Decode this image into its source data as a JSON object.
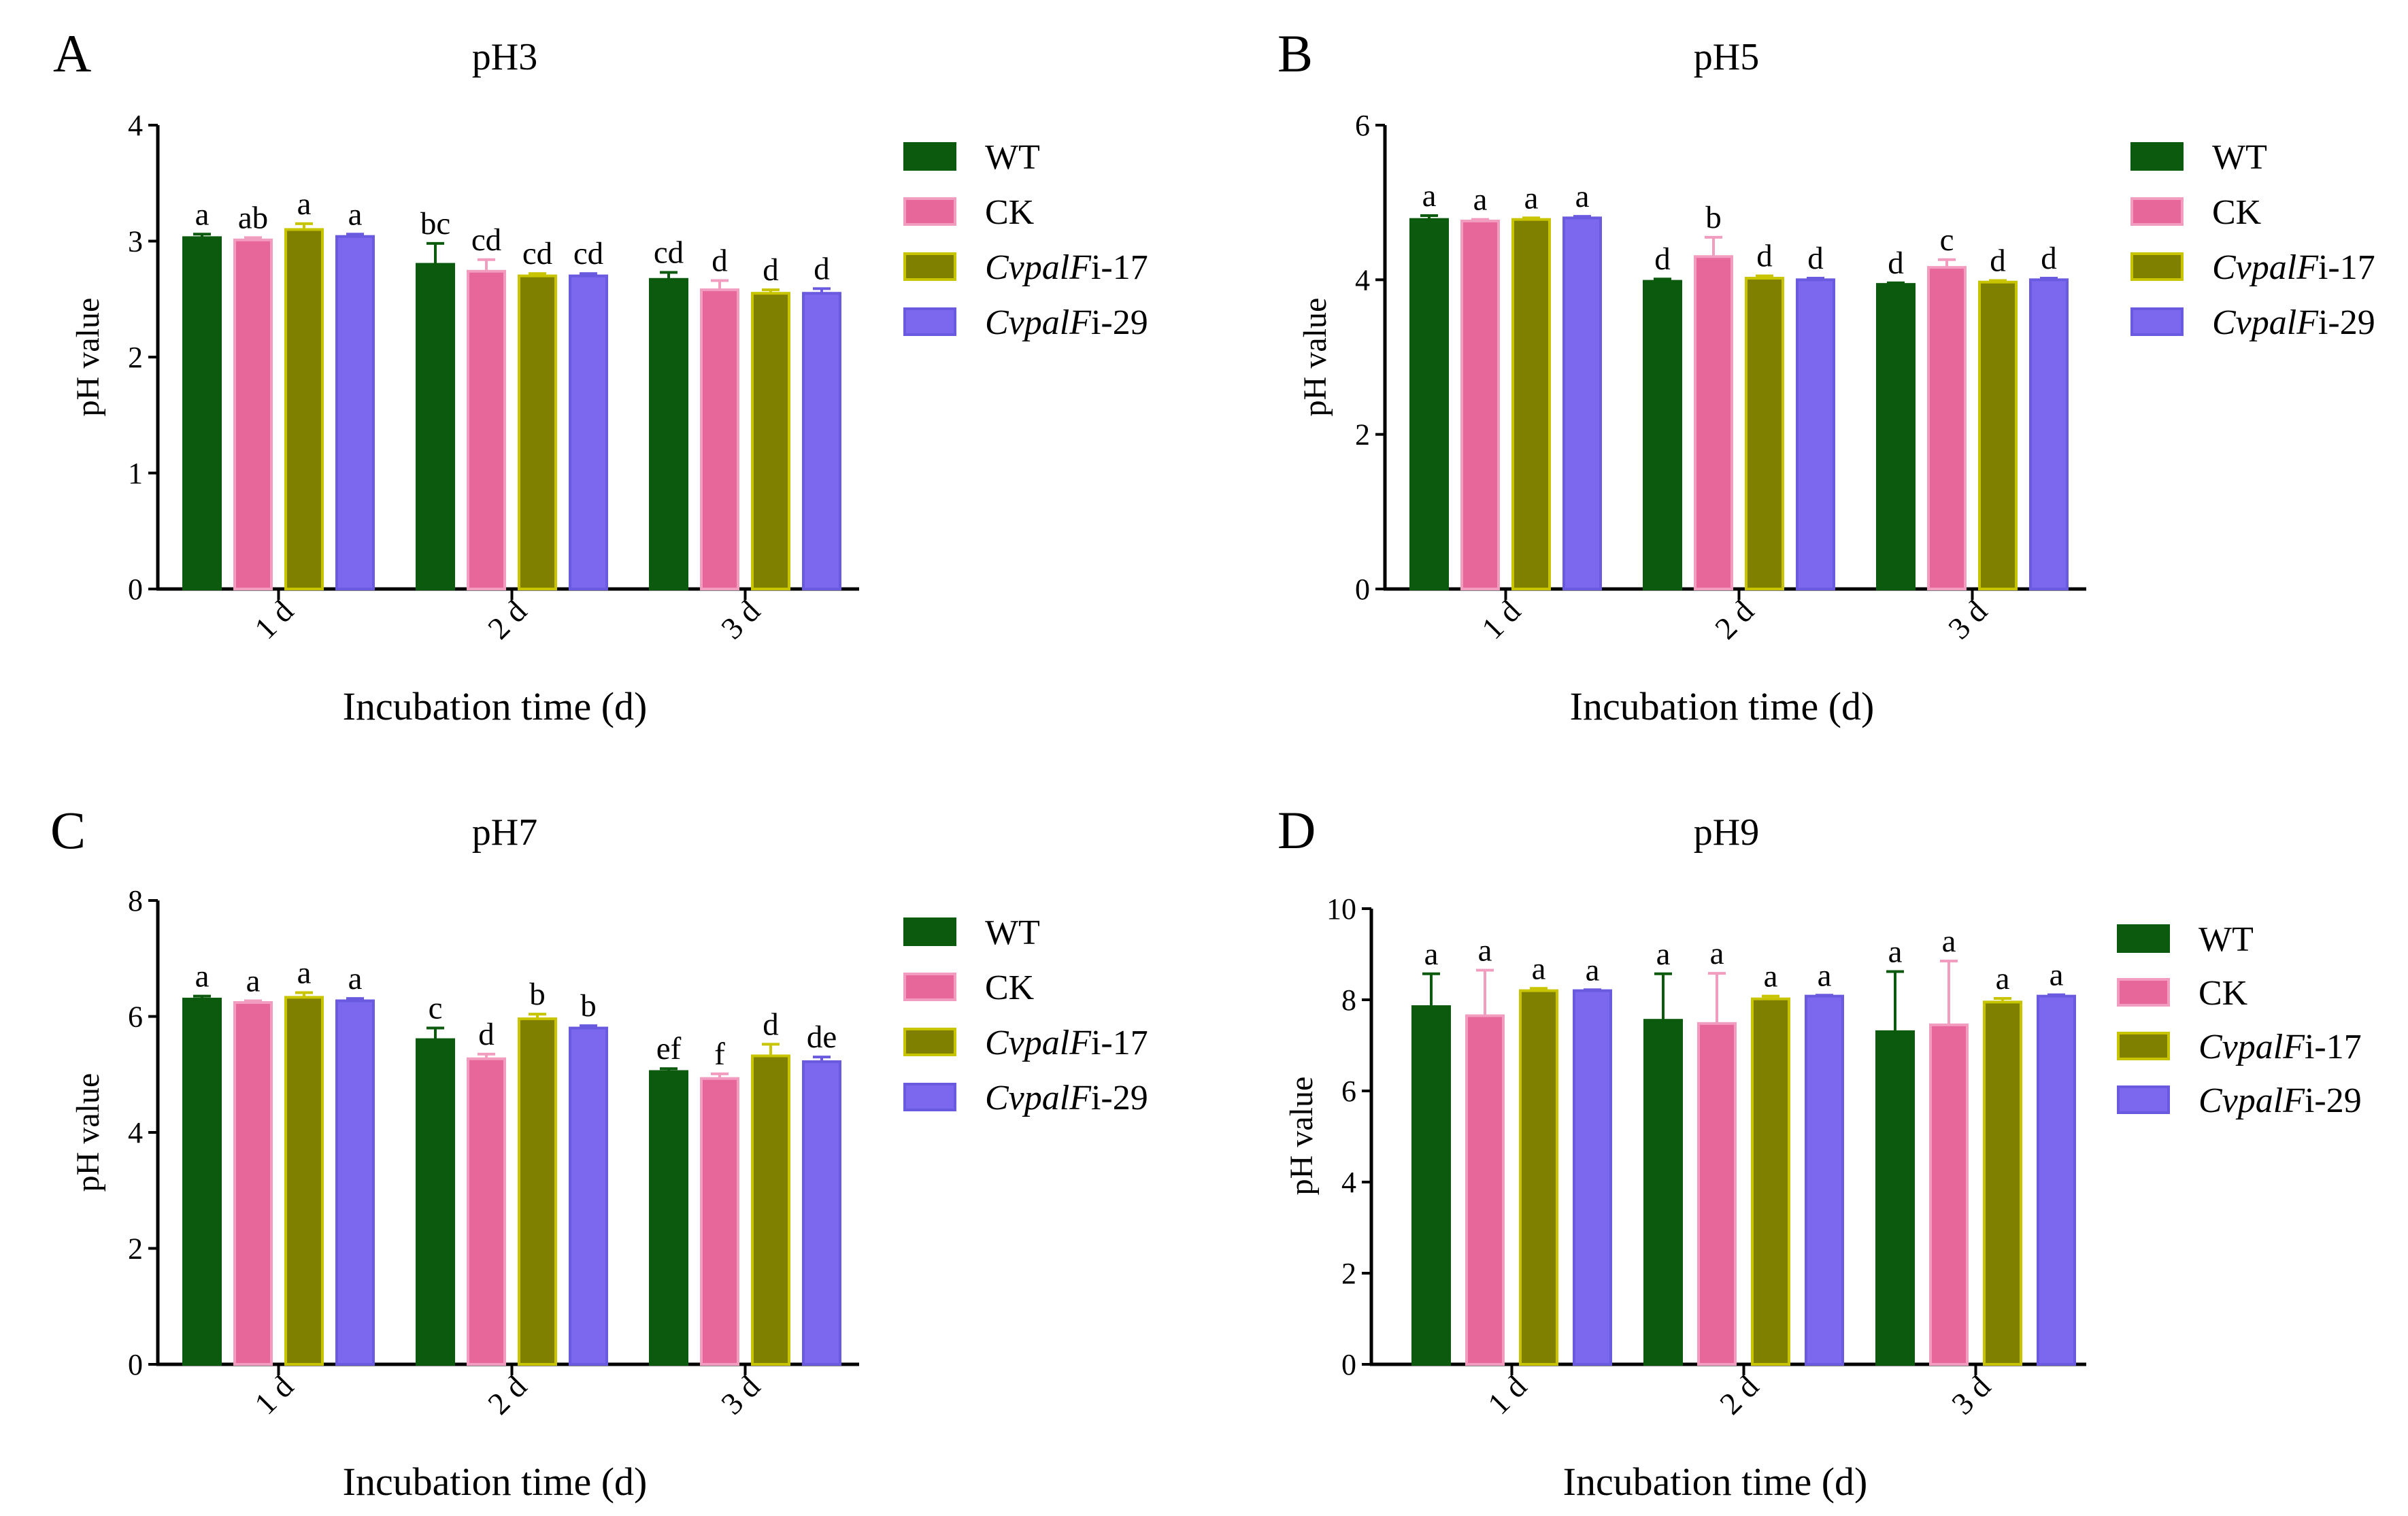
{
  "chart_data": [
    {
      "type": "bar",
      "letter": "A",
      "title": "pH3",
      "xlabel": "Incubation time (d)",
      "ylabel": "pH value",
      "ylim": [
        0,
        4
      ],
      "yticks": [
        0,
        1,
        2,
        3,
        4
      ],
      "categories": [
        "1 d",
        "2 d",
        "3 d"
      ],
      "series": [
        {
          "name": "WT",
          "name_italic": "",
          "name_suffix": "",
          "color": "#0b5a0d",
          "edge": "#0b5a0d",
          "values": [
            3.03,
            2.8,
            2.67
          ],
          "errors": [
            0.03,
            0.18,
            0.06
          ],
          "labels": [
            "a",
            "bc",
            "cd"
          ]
        },
        {
          "name": "CK",
          "name_italic": "",
          "name_suffix": "",
          "color": "#e8679a",
          "edge": "#f29cc0",
          "values": [
            3.01,
            2.74,
            2.58
          ],
          "errors": [
            0.02,
            0.1,
            0.08
          ],
          "labels": [
            "ab",
            "cd",
            "d"
          ]
        },
        {
          "name": "CvpalFi-17",
          "name_italic": "CvpalF",
          "name_suffix": "i-17",
          "color": "#808000",
          "edge": "#c8c400",
          "values": [
            3.1,
            2.7,
            2.55
          ],
          "errors": [
            0.05,
            0.02,
            0.03
          ],
          "labels": [
            "a",
            "cd",
            "d"
          ]
        },
        {
          "name": "CvpalFi-29",
          "name_italic": "CvpalF",
          "name_suffix": "i-29",
          "color": "#7b68ee",
          "edge": "#6a5ae0",
          "values": [
            3.04,
            2.7,
            2.55
          ],
          "errors": [
            0.02,
            0.02,
            0.04
          ],
          "labels": [
            "a",
            "cd",
            "d"
          ]
        }
      ]
    },
    {
      "type": "bar",
      "letter": "B",
      "title": "pH5",
      "xlabel": "Incubation time (d)",
      "ylabel": "pH value",
      "ylim": [
        0,
        6
      ],
      "yticks": [
        0,
        2,
        4,
        6
      ],
      "categories": [
        "1 d",
        "2 d",
        "3 d"
      ],
      "series": [
        {
          "name": "WT",
          "name_italic": "",
          "name_suffix": "",
          "color": "#0b5a0d",
          "edge": "#0b5a0d",
          "values": [
            4.78,
            3.98,
            3.94
          ],
          "errors": [
            0.05,
            0.03,
            0.02
          ],
          "labels": [
            "a",
            "d",
            "d"
          ]
        },
        {
          "name": "CK",
          "name_italic": "",
          "name_suffix": "",
          "color": "#e8679a",
          "edge": "#f29cc0",
          "values": [
            4.76,
            4.3,
            4.16
          ],
          "errors": [
            0.02,
            0.25,
            0.1
          ],
          "labels": [
            "a",
            "b",
            "c"
          ]
        },
        {
          "name": "CvpalFi-17",
          "name_italic": "CvpalF",
          "name_suffix": "i-17",
          "color": "#808000",
          "edge": "#c8c400",
          "values": [
            4.78,
            4.02,
            3.97
          ],
          "errors": [
            0.02,
            0.03,
            0.02
          ],
          "labels": [
            "a",
            "d",
            "d"
          ]
        },
        {
          "name": "CvpalFi-29",
          "name_italic": "CvpalF",
          "name_suffix": "i-29",
          "color": "#7b68ee",
          "edge": "#6a5ae0",
          "values": [
            4.8,
            4.0,
            4.0
          ],
          "errors": [
            0.02,
            0.02,
            0.02
          ],
          "labels": [
            "a",
            "d",
            "d"
          ]
        }
      ]
    },
    {
      "type": "bar",
      "letter": "C",
      "title": "pH7",
      "xlabel": "Incubation time (d)",
      "ylabel": "pH value",
      "ylim": [
        0,
        8
      ],
      "yticks": [
        0,
        2,
        4,
        6,
        8
      ],
      "categories": [
        "1 d",
        "2 d",
        "3 d"
      ],
      "series": [
        {
          "name": "WT",
          "name_italic": "",
          "name_suffix": "",
          "color": "#0b5a0d",
          "edge": "#0b5a0d",
          "values": [
            6.3,
            5.6,
            5.05
          ],
          "errors": [
            0.05,
            0.2,
            0.05
          ],
          "labels": [
            "a",
            "c",
            "ef"
          ]
        },
        {
          "name": "CK",
          "name_italic": "",
          "name_suffix": "",
          "color": "#e8679a",
          "edge": "#f29cc0",
          "values": [
            6.24,
            5.27,
            4.93
          ],
          "errors": [
            0.03,
            0.08,
            0.08
          ],
          "labels": [
            "a",
            "d",
            "f"
          ]
        },
        {
          "name": "CvpalFi-17",
          "name_italic": "CvpalF",
          "name_suffix": "i-17",
          "color": "#808000",
          "edge": "#c8c400",
          "values": [
            6.33,
            5.96,
            5.32
          ],
          "errors": [
            0.08,
            0.08,
            0.2
          ],
          "labels": [
            "a",
            "b",
            "d"
          ]
        },
        {
          "name": "CvpalFi-29",
          "name_italic": "CvpalF",
          "name_suffix": "i-29",
          "color": "#7b68ee",
          "edge": "#6a5ae0",
          "values": [
            6.27,
            5.8,
            5.22
          ],
          "errors": [
            0.04,
            0.04,
            0.08
          ],
          "labels": [
            "a",
            "b",
            "de"
          ]
        }
      ]
    },
    {
      "type": "bar",
      "letter": "D",
      "title": "pH9",
      "xlabel": "Incubation time (d)",
      "ylabel": "pH value",
      "ylim": [
        0,
        10
      ],
      "yticks": [
        0,
        2,
        4,
        6,
        8,
        10
      ],
      "categories": [
        "1 d",
        "2 d",
        "3 d"
      ],
      "series": [
        {
          "name": "WT",
          "name_italic": "",
          "name_suffix": "",
          "color": "#0b5a0d",
          "edge": "#0b5a0d",
          "values": [
            7.85,
            7.55,
            7.3
          ],
          "errors": [
            0.72,
            1.02,
            1.32
          ],
          "labels": [
            "a",
            "a",
            "a"
          ]
        },
        {
          "name": "CK",
          "name_italic": "",
          "name_suffix": "",
          "color": "#e8679a",
          "edge": "#f29cc0",
          "values": [
            7.65,
            7.48,
            7.45
          ],
          "errors": [
            1.0,
            1.1,
            1.4
          ],
          "labels": [
            "a",
            "a",
            "a"
          ]
        },
        {
          "name": "CvpalFi-17",
          "name_italic": "CvpalF",
          "name_suffix": "i-17",
          "color": "#808000",
          "edge": "#c8c400",
          "values": [
            8.2,
            8.02,
            7.95
          ],
          "errors": [
            0.05,
            0.06,
            0.08
          ],
          "labels": [
            "a",
            "a",
            "a"
          ]
        },
        {
          "name": "CvpalFi-29",
          "name_italic": "CvpalF",
          "name_suffix": "i-29",
          "color": "#7b68ee",
          "edge": "#6a5ae0",
          "values": [
            8.2,
            8.08,
            8.08
          ],
          "errors": [
            0.02,
            0.02,
            0.03
          ],
          "labels": [
            "a",
            "a",
            "a"
          ]
        }
      ]
    }
  ]
}
